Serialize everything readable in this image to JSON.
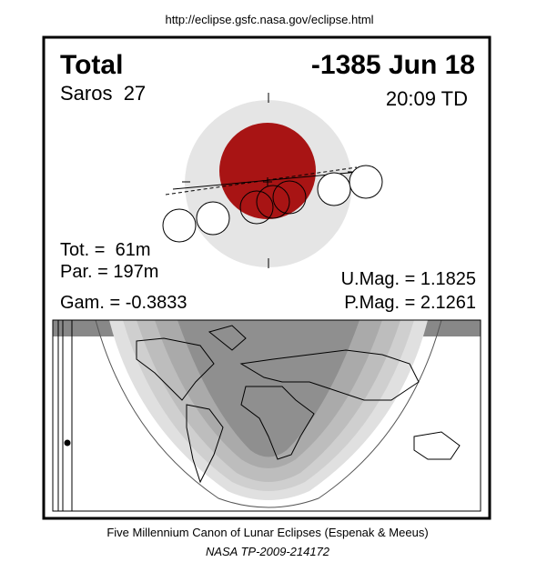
{
  "header": {
    "url": "http://eclipse.gsfc.nasa.gov/eclipse.html"
  },
  "eclipse": {
    "type": "Total",
    "date": "-1385 Jun 18",
    "saros": "Saros  27",
    "time": "20:09 TD",
    "tot": "Tot. =  61m",
    "par": "Par. = 197m",
    "gam": "Gam. = -0.3833",
    "umag": "U.Mag. = 1.1825",
    "pmag": "P.Mag. = 2.1261"
  },
  "footer": {
    "line1": "Five Millennium Canon of Lunar Eclipses (Espenak & Meeus)",
    "line2": "NASA TP-2009-214172"
  }
}
